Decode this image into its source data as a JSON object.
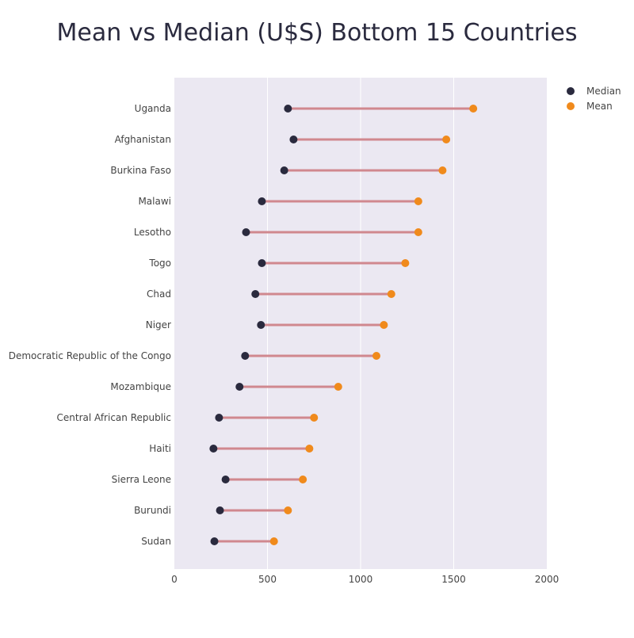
{
  "chart_data": {
    "type": "dumbbell",
    "title": "Mean vs Median (U$S) Bottom 15 Countries",
    "xlabel": "",
    "ylabel": "",
    "xlim": [
      0,
      2000
    ],
    "x_ticks": [
      0,
      500,
      1000,
      1500,
      2000
    ],
    "grid": "vertical",
    "legend_placement": "top-right",
    "categories": [
      "Uganda",
      "Afghanistan",
      "Burkina Faso",
      "Malawi",
      "Lesotho",
      "Togo",
      "Chad",
      "Niger",
      "Democratic Republic of the Congo",
      "Mozambique",
      "Central African Republic",
      "Haiti",
      "Sierra Leone",
      "Burundi",
      "Sudan"
    ],
    "series": [
      {
        "name": "Median",
        "color": "#2a2a3e",
        "values": [
          610,
          640,
          590,
          470,
          385,
          470,
          435,
          465,
          380,
          350,
          240,
          210,
          275,
          245,
          215
        ]
      },
      {
        "name": "Mean",
        "color": "#f08a1c",
        "values": [
          1605,
          1460,
          1440,
          1310,
          1310,
          1240,
          1165,
          1125,
          1085,
          880,
          750,
          725,
          690,
          610,
          535
        ]
      }
    ],
    "connector_color": "#d0888f",
    "plot_background": "#ebe8f2"
  }
}
